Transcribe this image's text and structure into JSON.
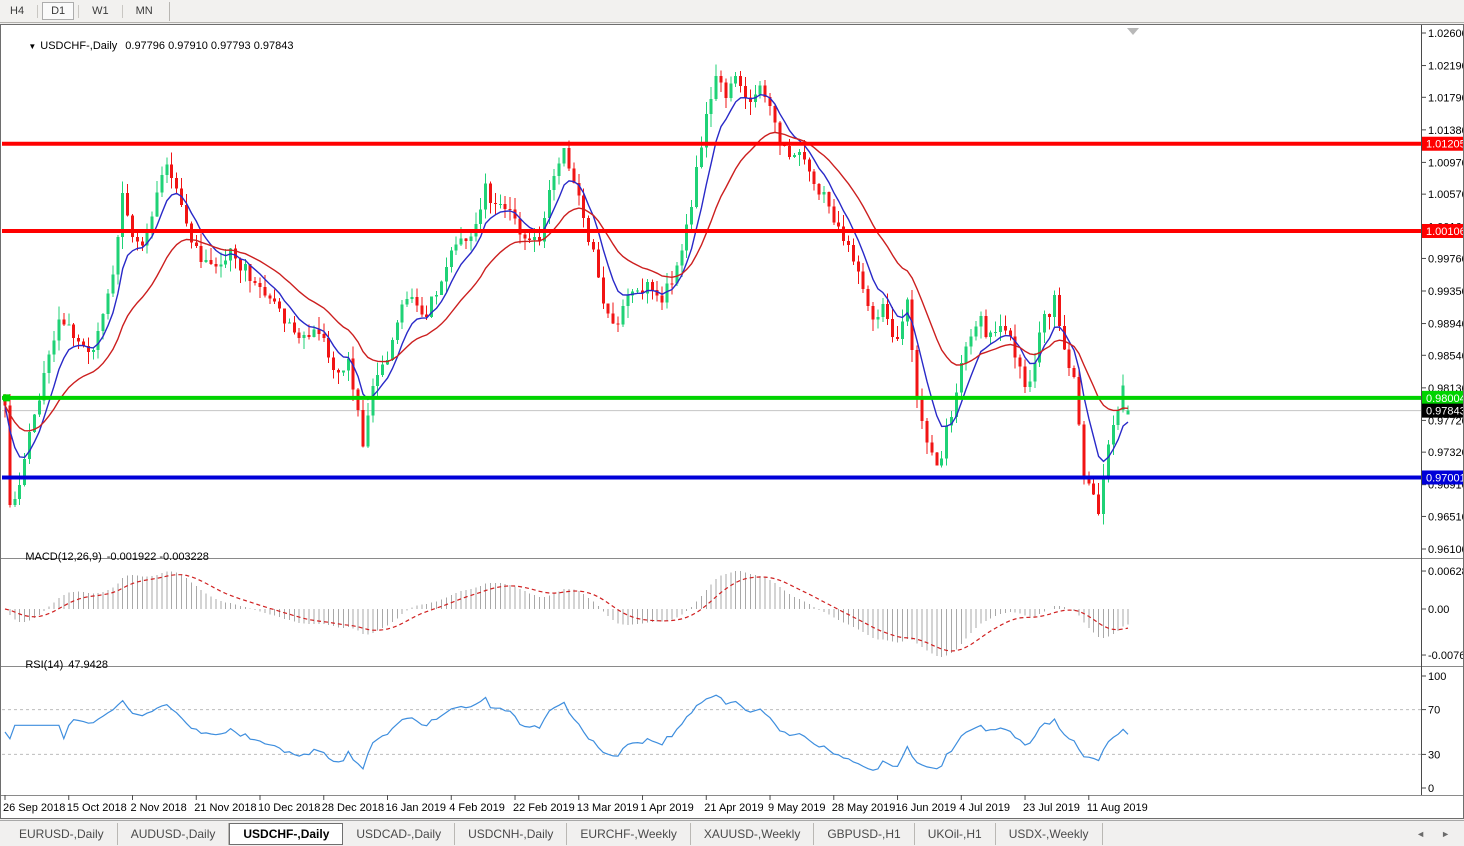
{
  "toolbar": {
    "timeframe_buttons": [
      {
        "label": "H4",
        "active": false
      },
      {
        "label": "D1",
        "active": true
      },
      {
        "label": "W1",
        "active": false
      },
      {
        "label": "MN",
        "active": false
      }
    ]
  },
  "chart": {
    "symbol_line": {
      "dropdown_icon": "▼",
      "symbol": "USDCHF-,Daily",
      "ohlc_text": "0.97796 0.97910 0.97793 0.97843"
    }
  },
  "chart_data": {
    "type": "candlestick",
    "title": "USDCHF-,Daily",
    "symbol": "USDCHF",
    "timeframe": "Daily",
    "last_candle": {
      "open": 0.97796,
      "high": 0.9791,
      "low": 0.97793,
      "close": 0.97843
    },
    "price_range": {
      "top": 1.026,
      "bottom": 0.961
    },
    "y_axis_ticks": [
      1.026,
      1.0219,
      1.0179,
      1.0138,
      1.0097,
      1.0057,
      1.0016,
      0.9976,
      0.9935,
      0.9894,
      0.9854,
      0.9813,
      0.9772,
      0.9732,
      0.9691,
      0.9651,
      0.961
    ],
    "x_axis_dates": [
      "26 Sep 2018",
      "15 Oct 2018",
      "2 Nov 2018",
      "21 Nov 2018",
      "10 Dec 2018",
      "28 Dec 2018",
      "16 Jan 2019",
      "4 Feb 2019",
      "22 Feb 2019",
      "13 Mar 2019",
      "1 Apr 2019",
      "21 Apr 2019",
      "9 May 2019",
      "28 May 2019",
      "16 Jun 2019",
      "4 Jul 2019",
      "23 Jul 2019",
      "11 Aug 2019"
    ],
    "candles_visible": 230,
    "first_open": 0.98,
    "price_path_anchors": [
      [
        0,
        0.9795
      ],
      [
        1,
        0.9658
      ],
      [
        3,
        0.969
      ],
      [
        5,
        0.9755
      ],
      [
        8,
        0.983
      ],
      [
        11,
        0.99
      ],
      [
        14,
        0.9885
      ],
      [
        18,
        0.9862
      ],
      [
        22,
        0.996
      ],
      [
        24,
        1.0048
      ],
      [
        26,
        1.0008
      ],
      [
        28,
        0.9996
      ],
      [
        31,
        1.0058
      ],
      [
        33,
        1.01
      ],
      [
        35,
        1.0068
      ],
      [
        38,
        0.9992
      ],
      [
        42,
        0.9958
      ],
      [
        46,
        0.9982
      ],
      [
        50,
        0.9952
      ],
      [
        55,
        0.992
      ],
      [
        60,
        0.9872
      ],
      [
        64,
        0.9886
      ],
      [
        68,
        0.9822
      ],
      [
        70,
        0.985
      ],
      [
        73,
        0.9748
      ],
      [
        75,
        0.9812
      ],
      [
        78,
        0.9852
      ],
      [
        82,
        0.9928
      ],
      [
        85,
        0.9905
      ],
      [
        88,
        0.9932
      ],
      [
        92,
        0.9993
      ],
      [
        95,
        1.0002
      ],
      [
        98,
        1.0062
      ],
      [
        100,
        1.0038
      ],
      [
        103,
        1.0042
      ],
      [
        106,
        0.9992
      ],
      [
        109,
        1.0002
      ],
      [
        112,
        1.0078
      ],
      [
        114,
        1.0108
      ],
      [
        116,
        1.0078
      ],
      [
        119,
        1.0002
      ],
      [
        122,
        0.9922
      ],
      [
        125,
        0.9892
      ],
      [
        128,
        0.9938
      ],
      [
        131,
        0.9944
      ],
      [
        134,
        0.993
      ],
      [
        137,
        0.9964
      ],
      [
        140,
        1.0048
      ],
      [
        143,
        1.0158
      ],
      [
        145,
        1.0208
      ],
      [
        147,
        1.0186
      ],
      [
        149,
        1.0202
      ],
      [
        152,
        1.018
      ],
      [
        154,
        1.0202
      ],
      [
        156,
        1.0158
      ],
      [
        158,
        1.0122
      ],
      [
        161,
        1.0108
      ],
      [
        163,
        1.0102
      ],
      [
        166,
        1.0058
      ],
      [
        169,
        1.0028
      ],
      [
        172,
        0.9988
      ],
      [
        175,
        0.9938
      ],
      [
        177,
        0.9898
      ],
      [
        179,
        0.9918
      ],
      [
        182,
        0.9868
      ],
      [
        184,
        0.9928
      ],
      [
        186,
        0.9798
      ],
      [
        188,
        0.9742
      ],
      [
        190,
        0.9714
      ],
      [
        192,
        0.9758
      ],
      [
        195,
        0.9838
      ],
      [
        198,
        0.9902
      ],
      [
        201,
        0.9878
      ],
      [
        204,
        0.9888
      ],
      [
        207,
        0.9836
      ],
      [
        209,
        0.982
      ],
      [
        212,
        0.9898
      ],
      [
        214,
        0.9928
      ],
      [
        216,
        0.9868
      ],
      [
        218,
        0.9828
      ],
      [
        220,
        0.97
      ],
      [
        222,
        0.9678
      ],
      [
        223,
        0.9662
      ],
      [
        225,
        0.9738
      ],
      [
        227,
        0.9788
      ],
      [
        228,
        0.9806
      ],
      [
        229,
        0.97843
      ]
    ],
    "levels": [
      {
        "label": "1.01205",
        "price": 1.01205,
        "color": "#ff0000",
        "role": "resistance"
      },
      {
        "label": "1.00106",
        "price": 1.00106,
        "color": "#ff0000",
        "role": "resistance"
      },
      {
        "label": "0.98004",
        "price": 0.98004,
        "color": "#00d300",
        "role": "support"
      },
      {
        "label": "0.97001",
        "price": 0.97001,
        "color": "#0000d8",
        "role": "support"
      }
    ],
    "current_price": {
      "label": "0.97843",
      "price": 0.97843,
      "label_bg": "#000000"
    },
    "moving_averages": [
      {
        "period": 7,
        "color": "#2929c8"
      },
      {
        "period": 21,
        "color": "#cc1f1f"
      }
    ],
    "candle_colors": {
      "bull": "#1fd276",
      "bear": "#f11414"
    },
    "indicators": {
      "macd": {
        "name": "MACD(12,26,9)",
        "values_text": "-0.001922 -0.003228",
        "params": [
          12,
          26,
          9
        ],
        "axis_ticks": [
          {
            "label": "0.006286",
            "value": 0.006286
          },
          {
            "label": "0.00",
            "value": 0
          },
          {
            "label": "-0.00762",
            "value": -0.00762
          }
        ],
        "histogram_color": "#a9a9a9",
        "signal_color": "#d02020"
      },
      "rsi": {
        "name": "RSI(14)",
        "value_text": "47.9428",
        "period": 14,
        "axis_ticks": [
          100,
          70,
          30,
          0
        ],
        "overbought": 70,
        "oversold": 30,
        "line_color": "#3e8ede"
      }
    }
  },
  "tabs": {
    "items": [
      "EURUSD-,Daily",
      "AUDUSD-,Daily",
      "USDCHF-,Daily",
      "USDCAD-,Daily",
      "USDCNH-,Daily",
      "EURCHF-,Weekly",
      "XAUUSD-,Weekly",
      "GBPUSD-,H1",
      "UKOil-,H1",
      "USDX-,Weekly"
    ],
    "active_index": 2,
    "left_arrow": "◄",
    "right_arrow": "►"
  }
}
